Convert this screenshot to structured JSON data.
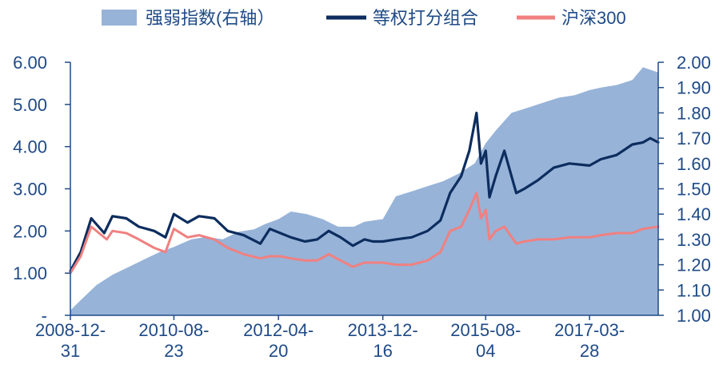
{
  "chart_data": {
    "type": "line",
    "title": "",
    "xlabel": "",
    "ylabel": "",
    "x_tick_labels": [
      {
        "line1": "2008-12-",
        "line2": "31"
      },
      {
        "line1": "2010-08-",
        "line2": "23"
      },
      {
        "line1": "2012-04-",
        "line2": "20"
      },
      {
        "line1": "2013-12-",
        "line2": "16"
      },
      {
        "line1": "2015-08-",
        "line2": "04"
      },
      {
        "line1": "2017-03-",
        "line2": "28"
      }
    ],
    "x_tick_dates": [
      "2008-12-31",
      "2010-08-23",
      "2012-04-20",
      "2013-12-16",
      "2015-08-04",
      "2017-03-28"
    ],
    "xlim": [
      "2008-12-31",
      "2018-04-30"
    ],
    "y_left": {
      "ylim": [
        0,
        6
      ],
      "tick_labels": [
        "-",
        "1.00",
        "2.00",
        "3.00",
        "4.00",
        "5.00",
        "6.00"
      ],
      "ticks": [
        0,
        1,
        2,
        3,
        4,
        5,
        6
      ]
    },
    "y_right": {
      "ylim": [
        1.0,
        2.0
      ],
      "tick_labels": [
        "1.00",
        "1.10",
        "1.20",
        "1.30",
        "1.40",
        "1.50",
        "1.60",
        "1.70",
        "1.80",
        "1.90",
        "2.00"
      ],
      "ticks": [
        1.0,
        1.1,
        1.2,
        1.3,
        1.4,
        1.5,
        1.6,
        1.7,
        1.8,
        1.9,
        2.0
      ]
    },
    "legend_position": "top",
    "series": [
      {
        "name": "强弱指数(右轴）",
        "type": "area",
        "axis": "right",
        "color": "#97b3d8",
        "x": [
          "2008-12-31",
          "2009-03-01",
          "2009-06-01",
          "2009-09-01",
          "2009-12-01",
          "2010-03-01",
          "2010-06-01",
          "2010-08-23",
          "2010-12-01",
          "2011-03-01",
          "2011-06-01",
          "2011-09-01",
          "2011-12-01",
          "2012-02-01",
          "2012-04-20",
          "2012-07-01",
          "2012-10-01",
          "2013-01-01",
          "2013-04-01",
          "2013-07-01",
          "2013-09-01",
          "2013-12-16",
          "2014-03-01",
          "2014-06-01",
          "2014-09-01",
          "2014-12-01",
          "2015-03-01",
          "2015-06-01",
          "2015-08-04",
          "2015-10-01",
          "2016-01-01",
          "2016-04-01",
          "2016-07-01",
          "2016-10-01",
          "2017-01-01",
          "2017-03-28",
          "2017-06-01",
          "2017-09-01",
          "2017-12-01",
          "2018-02-01",
          "2018-04-30"
        ],
        "values": [
          1.02,
          1.06,
          1.12,
          1.16,
          1.19,
          1.22,
          1.25,
          1.27,
          1.3,
          1.31,
          1.3,
          1.33,
          1.34,
          1.36,
          1.38,
          1.41,
          1.4,
          1.38,
          1.35,
          1.35,
          1.37,
          1.38,
          1.47,
          1.49,
          1.51,
          1.53,
          1.56,
          1.6,
          1.68,
          1.73,
          1.8,
          1.82,
          1.84,
          1.86,
          1.87,
          1.89,
          1.9,
          1.91,
          1.93,
          1.98,
          1.96
        ]
      },
      {
        "name": "等权打分组合",
        "type": "line",
        "axis": "left",
        "color": "#0c2d5e",
        "x": [
          "2008-12-31",
          "2009-03-01",
          "2009-05-01",
          "2009-07-15",
          "2009-09-01",
          "2009-11-20",
          "2010-02-01",
          "2010-05-01",
          "2010-07-05",
          "2010-08-23",
          "2010-11-10",
          "2011-01-15",
          "2011-04-15",
          "2011-07-01",
          "2011-10-01",
          "2012-01-06",
          "2012-03-01",
          "2012-05-01",
          "2012-07-01",
          "2012-09-20",
          "2012-12-01",
          "2013-02-05",
          "2013-04-15",
          "2013-06-25",
          "2013-09-01",
          "2013-10-20",
          "2013-12-16",
          "2014-03-01",
          "2014-06-01",
          "2014-09-01",
          "2014-11-15",
          "2015-01-10",
          "2015-03-15",
          "2015-05-01",
          "2015-06-12",
          "2015-07-08",
          "2015-08-04",
          "2015-08-26",
          "2015-10-01",
          "2015-11-20",
          "2016-01-28",
          "2016-03-15",
          "2016-06-01",
          "2016-09-01",
          "2016-12-01",
          "2017-03-28",
          "2017-06-01",
          "2017-09-01",
          "2017-12-01",
          "2018-02-01",
          "2018-03-15",
          "2018-04-30"
        ],
        "values": [
          1.05,
          1.5,
          2.3,
          1.95,
          2.35,
          2.3,
          2.1,
          2.0,
          1.85,
          2.4,
          2.2,
          2.35,
          2.3,
          2.0,
          1.9,
          1.7,
          2.05,
          1.95,
          1.85,
          1.75,
          1.8,
          2.0,
          1.85,
          1.65,
          1.8,
          1.75,
          1.75,
          1.8,
          1.85,
          2.0,
          2.25,
          2.9,
          3.3,
          3.9,
          4.8,
          3.6,
          3.9,
          2.8,
          3.3,
          3.9,
          2.9,
          3.0,
          3.2,
          3.5,
          3.6,
          3.55,
          3.7,
          3.8,
          4.05,
          4.1,
          4.2,
          4.1
        ]
      },
      {
        "name": "沪深300",
        "type": "line",
        "axis": "left",
        "color": "#f08080",
        "x": [
          "2008-12-31",
          "2009-03-01",
          "2009-05-01",
          "2009-07-30",
          "2009-09-01",
          "2009-11-20",
          "2010-02-01",
          "2010-05-01",
          "2010-07-05",
          "2010-08-23",
          "2010-11-10",
          "2011-01-15",
          "2011-04-15",
          "2011-07-01",
          "2011-10-01",
          "2012-01-06",
          "2012-03-01",
          "2012-05-01",
          "2012-07-01",
          "2012-09-20",
          "2012-12-01",
          "2013-02-05",
          "2013-04-15",
          "2013-06-25",
          "2013-09-01",
          "2013-12-16",
          "2014-03-01",
          "2014-06-01",
          "2014-09-01",
          "2014-11-15",
          "2015-01-10",
          "2015-03-15",
          "2015-05-01",
          "2015-06-12",
          "2015-07-08",
          "2015-08-04",
          "2015-08-26",
          "2015-10-01",
          "2015-11-20",
          "2016-01-28",
          "2016-03-15",
          "2016-06-01",
          "2016-09-01",
          "2016-12-01",
          "2017-03-28",
          "2017-06-01",
          "2017-09-01",
          "2017-12-01",
          "2018-02-01",
          "2018-04-30"
        ],
        "values": [
          1.0,
          1.4,
          2.1,
          1.8,
          2.0,
          1.95,
          1.8,
          1.6,
          1.5,
          2.05,
          1.85,
          1.9,
          1.8,
          1.6,
          1.45,
          1.35,
          1.4,
          1.4,
          1.35,
          1.3,
          1.3,
          1.45,
          1.3,
          1.15,
          1.25,
          1.25,
          1.2,
          1.2,
          1.3,
          1.5,
          2.0,
          2.1,
          2.5,
          2.9,
          2.3,
          2.5,
          1.8,
          2.0,
          2.1,
          1.7,
          1.75,
          1.8,
          1.8,
          1.85,
          1.85,
          1.9,
          1.95,
          1.95,
          2.05,
          2.1
        ]
      }
    ]
  }
}
